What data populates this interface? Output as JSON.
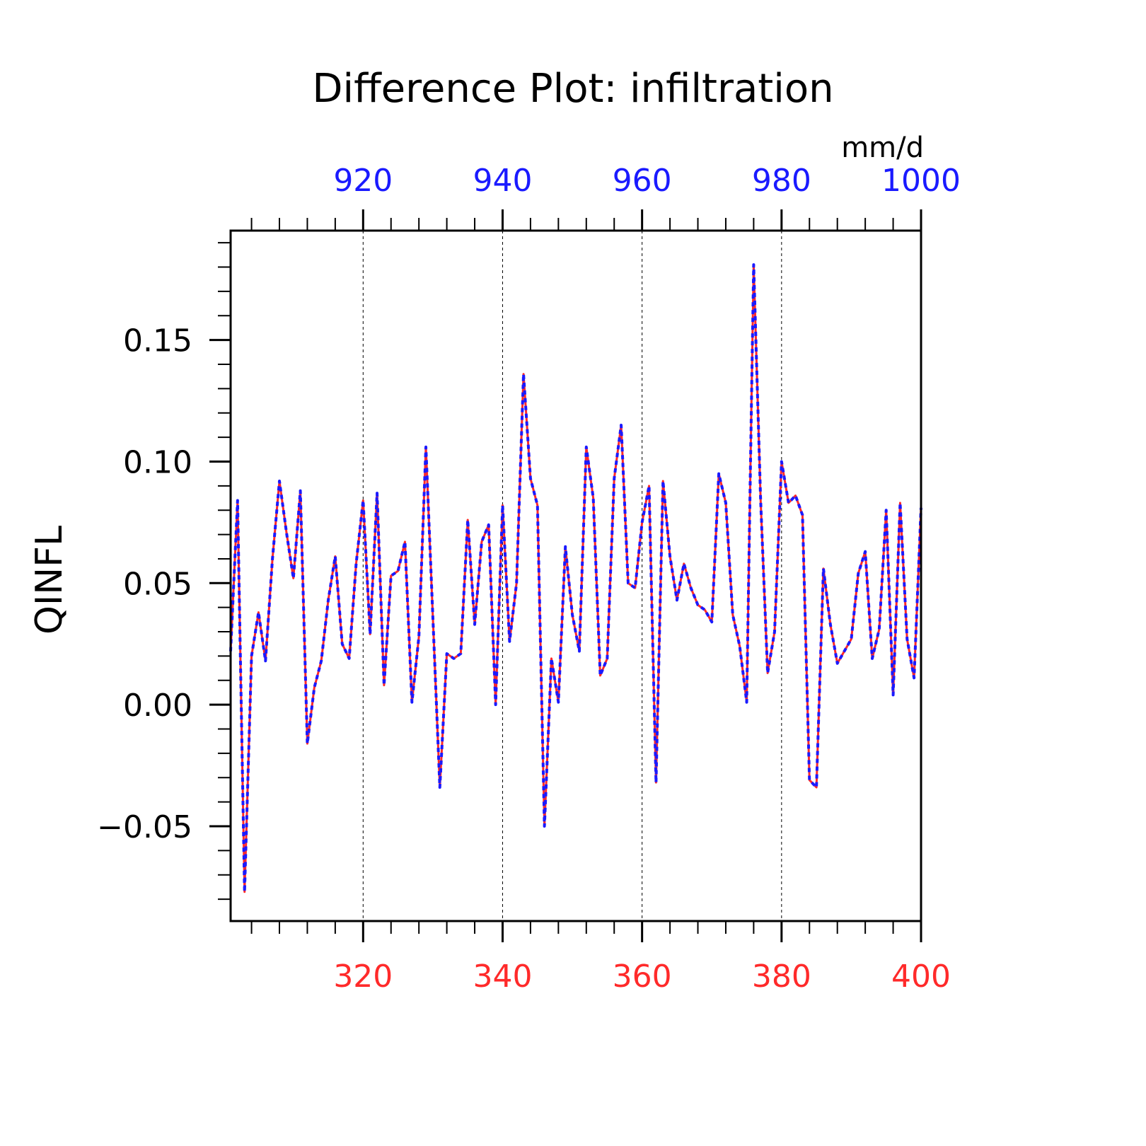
{
  "chart_data": {
    "type": "line",
    "title": "Difference Plot: infiltration",
    "ylabel": "QINFL",
    "units": "mm/d",
    "xlim_bottom": [
      301,
      400
    ],
    "xlim_top": [
      901,
      1000
    ],
    "ylim": [
      -0.089,
      0.195
    ],
    "bottom_ticks": [
      "320",
      "340",
      "360",
      "380",
      "400"
    ],
    "top_ticks": [
      "920",
      "940",
      "960",
      "980",
      "1000"
    ],
    "y_ticks": [
      "−0.05",
      "0.00",
      "0.05",
      "0.10",
      "0.15"
    ],
    "grid": "vertical dashed at major top ticks",
    "colors": {
      "bottom_series": "#ff2a2a",
      "top_series": "#1a1aff",
      "axes": "#000000"
    },
    "series": [
      {
        "axis": "bottom",
        "x_start": 301,
        "values": [
          0.022,
          0.084,
          -0.077,
          0.02,
          0.038,
          0.018,
          0.06,
          0.092,
          0.071,
          0.052,
          0.088,
          -0.016,
          0.007,
          0.018,
          0.043,
          0.061,
          0.025,
          0.019,
          0.058,
          0.084,
          0.029,
          0.087,
          0.008,
          0.053,
          0.055,
          0.067,
          0.001,
          0.028,
          0.106,
          0.036,
          -0.034,
          0.021,
          0.019,
          0.021,
          0.076,
          0.033,
          0.067,
          0.074,
          0.0,
          0.082,
          0.026,
          0.05,
          0.136,
          0.093,
          0.082,
          -0.05,
          0.019,
          0.001,
          0.065,
          0.037,
          0.022,
          0.106,
          0.085,
          0.012,
          0.019,
          0.093,
          0.115,
          0.05,
          0.048,
          0.075,
          0.09,
          -0.032,
          0.092,
          0.061,
          0.043,
          0.058,
          0.048,
          0.041,
          0.039,
          0.034,
          0.095,
          0.083,
          0.037,
          0.024,
          0.001,
          0.181,
          0.084,
          0.013,
          0.03,
          0.1,
          0.083,
          0.086,
          0.078,
          -0.031,
          -0.034,
          0.056,
          0.033,
          0.017,
          0.022,
          0.027,
          0.054,
          0.063,
          0.019,
          0.031,
          0.08,
          0.004,
          0.083,
          0.027,
          0.011,
          0.081
        ]
      },
      {
        "axis": "top",
        "x_start": 901,
        "values": [
          0.022,
          0.084,
          -0.077,
          0.02,
          0.038,
          0.018,
          0.06,
          0.092,
          0.071,
          0.052,
          0.088,
          -0.016,
          0.007,
          0.018,
          0.043,
          0.061,
          0.025,
          0.019,
          0.058,
          0.084,
          0.029,
          0.087,
          0.008,
          0.053,
          0.055,
          0.067,
          0.001,
          0.028,
          0.106,
          0.036,
          -0.034,
          0.021,
          0.019,
          0.021,
          0.076,
          0.033,
          0.067,
          0.074,
          0.0,
          0.082,
          0.026,
          0.05,
          0.136,
          0.093,
          0.082,
          -0.05,
          0.019,
          0.001,
          0.065,
          0.037,
          0.022,
          0.106,
          0.085,
          0.012,
          0.019,
          0.093,
          0.115,
          0.05,
          0.048,
          0.075,
          0.09,
          -0.032,
          0.092,
          0.061,
          0.043,
          0.058,
          0.048,
          0.041,
          0.039,
          0.034,
          0.095,
          0.083,
          0.037,
          0.024,
          0.001,
          0.181,
          0.084,
          0.013,
          0.03,
          0.1,
          0.083,
          0.086,
          0.078,
          -0.031,
          -0.034,
          0.056,
          0.033,
          0.017,
          0.022,
          0.027,
          0.054,
          0.063,
          0.019,
          0.031,
          0.08,
          0.004,
          0.083,
          0.027,
          0.011,
          0.081
        ]
      }
    ]
  }
}
